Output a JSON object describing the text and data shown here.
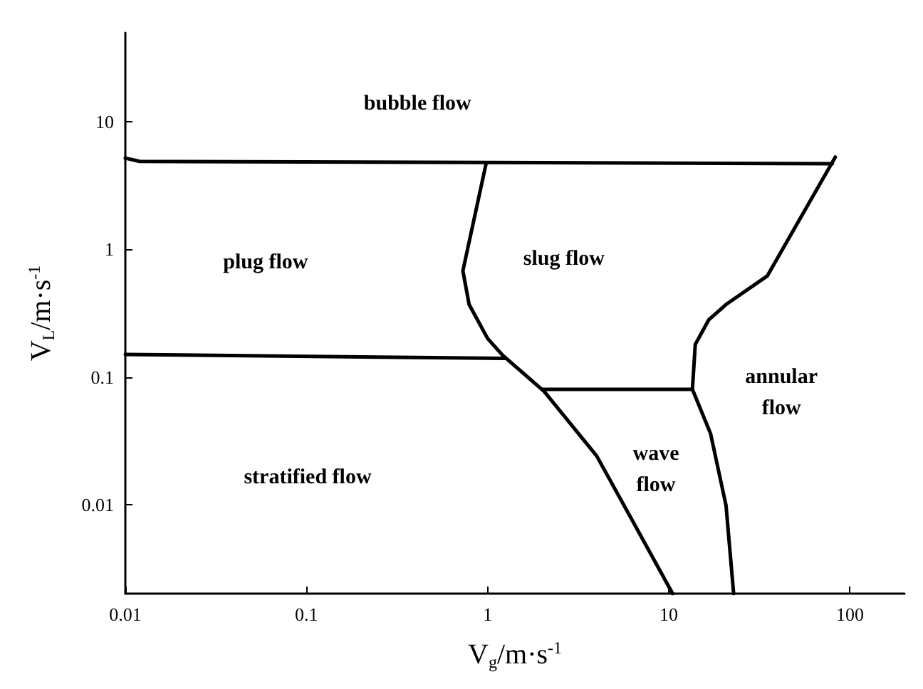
{
  "chart_data": {
    "type": "line",
    "xlabel": "V$_{g}$/m·s$^{-1}$",
    "ylabel": "V$_{L}$/m·s$^{-1}$",
    "log": "xy",
    "xlim": [
      0.01,
      200
    ],
    "ylim": [
      0.002,
      50
    ],
    "xticks": [
      0.01,
      0.1,
      1,
      10,
      100
    ],
    "yticks": [
      0.01,
      0.1,
      1,
      10
    ],
    "grid": false,
    "marker": "none",
    "line_style": "solid",
    "series": [
      {
        "color": "#000000",
        "x": [
          0.01,
          0.012,
          1,
          80
        ],
        "values": [
          5.2,
          4.9,
          4.8,
          4.7
        ]
      },
      {
        "color": "#000000",
        "x": [
          0.98,
          0.73,
          0.79,
          1.0,
          1.21,
          2.05,
          4.0,
          6.9,
          10.5
        ],
        "values": [
          4.7,
          0.68,
          0.37,
          0.2,
          0.148,
          0.077,
          0.024,
          0.0059,
          0.002
        ]
      },
      {
        "color": "#000000",
        "x": [
          0.01,
          1.25
        ],
        "values": [
          0.15,
          0.14
        ]
      },
      {
        "color": "#000000",
        "x": [
          2.0,
          13.5
        ],
        "values": [
          0.08,
          0.08
        ]
      },
      {
        "color": "#000000",
        "x": [
          83,
          35,
          20.7,
          16.6,
          14,
          13.5,
          17,
          20.7,
          22.8
        ],
        "values": [
          5.3,
          0.62,
          0.37,
          0.28,
          0.18,
          0.08,
          0.036,
          0.0098,
          0.002
        ]
      }
    ],
    "annotations": [
      "bubble flow",
      "plug flow",
      "slug flow",
      "stratified flow",
      "wave\nflow",
      "annular\nflow"
    ]
  }
}
